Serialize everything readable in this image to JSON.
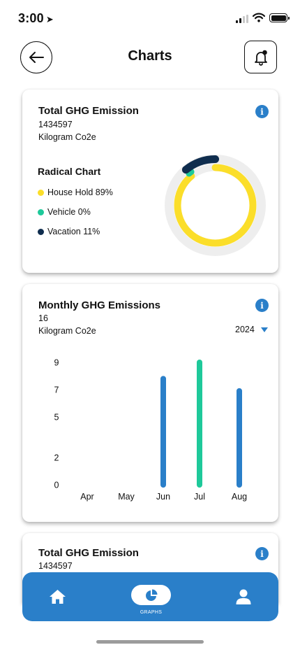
{
  "status_bar": {
    "time": "3:00"
  },
  "header": {
    "title": "Charts"
  },
  "card_total": {
    "title": "Total GHG Emission",
    "value": "1434597",
    "unit": "Kilogram Co2e",
    "legend_title": "Radical Chart",
    "legend": [
      {
        "label": "House Hold 89%",
        "color": "#fbde2a"
      },
      {
        "label": "Vehicle 0%",
        "color": "#1ec99a"
      },
      {
        "label": "Vacation 11%",
        "color": "#0f2d4e"
      }
    ]
  },
  "card_monthly": {
    "title": "Monthly GHG Emissions",
    "value": "16",
    "unit": "Kilogram Co2e",
    "year": "2024"
  },
  "card_total_2": {
    "title": "Total GHG Emission",
    "value": "1434597"
  },
  "bottom_nav": {
    "graphs_label": "GRAPHS"
  },
  "colors": {
    "accent": "#2a7fc9",
    "highlight_bar": "#1ec99a",
    "household": "#fbde2a",
    "vehicle": "#1ec99a",
    "vacation": "#0f2d4e",
    "track": "#eeeeee"
  },
  "chart_data": [
    {
      "type": "pie",
      "title": "Radical Chart",
      "categories": [
        "House Hold",
        "Vehicle",
        "Vacation"
      ],
      "values": [
        89,
        0,
        11
      ],
      "unit": "%"
    },
    {
      "type": "bar",
      "title": "Monthly GHG Emissions",
      "categories": [
        "Apr",
        "May",
        "Jun",
        "Jul",
        "Aug"
      ],
      "values": [
        0,
        0,
        7.8,
        9,
        6.9
      ],
      "yticks": [
        "0",
        "2",
        "5",
        "7",
        "9"
      ],
      "ylim": [
        0,
        9
      ],
      "highlight": "Jul",
      "grid": false
    }
  ]
}
